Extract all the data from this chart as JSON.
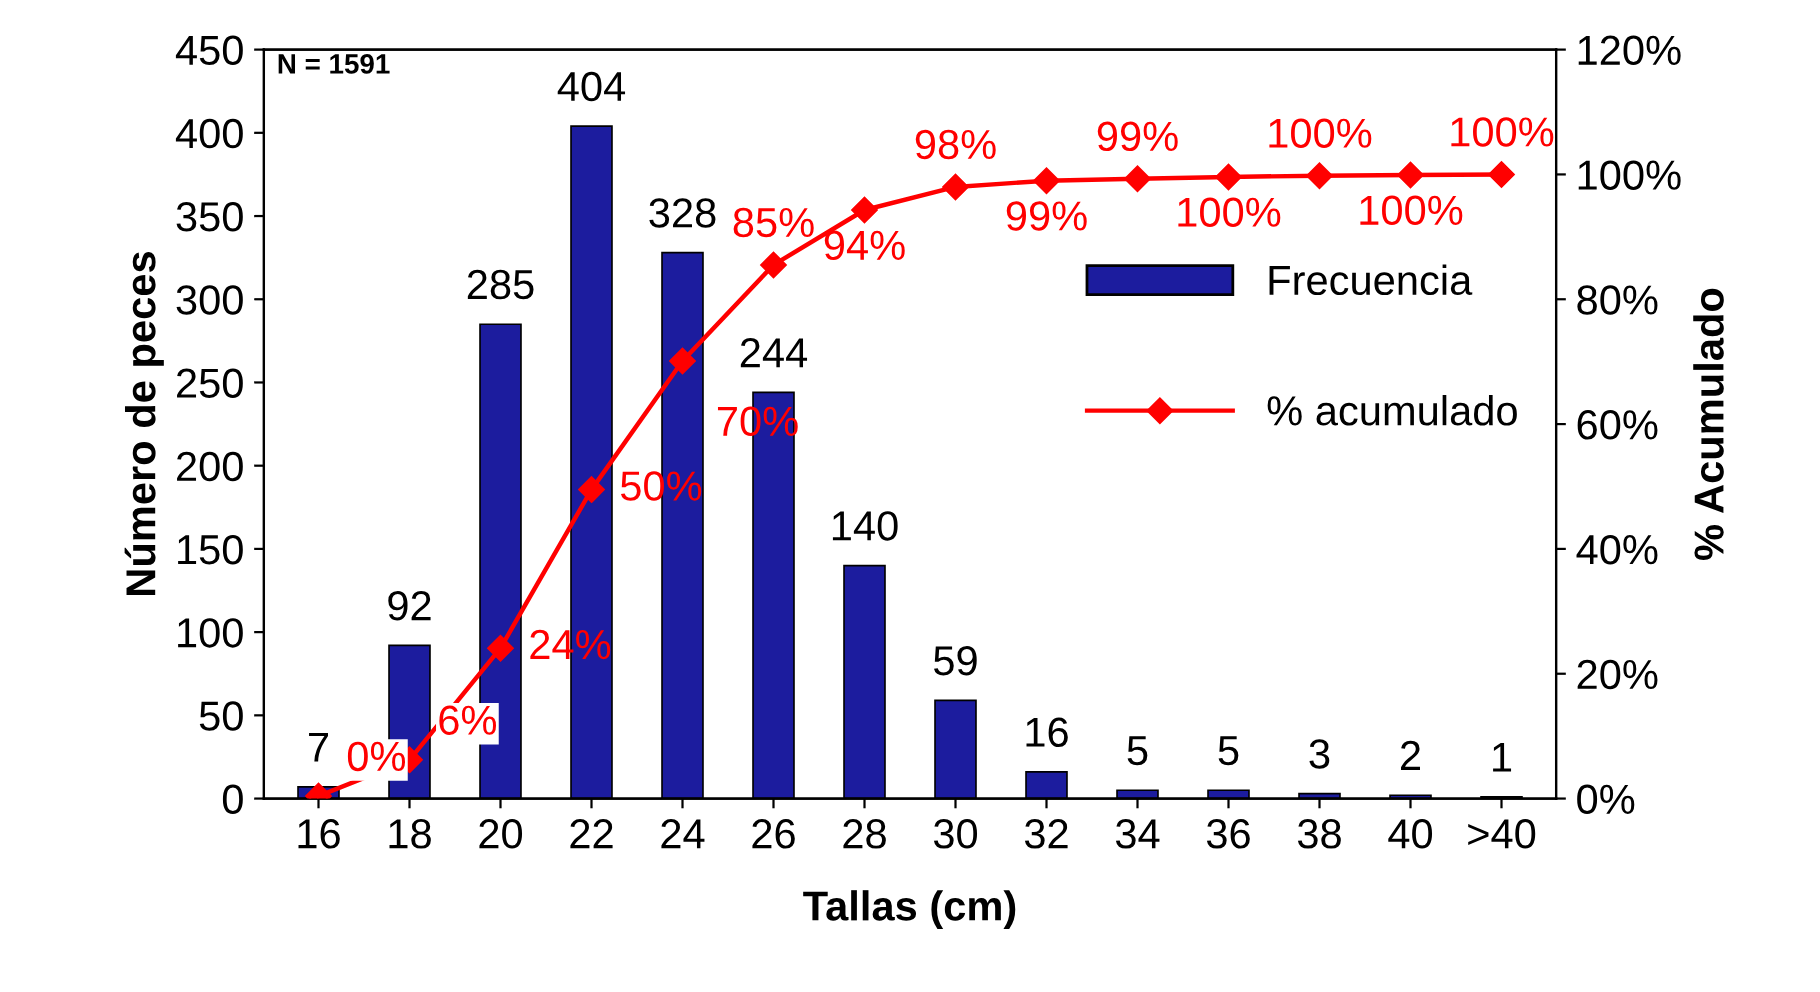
{
  "chart_data": {
    "type": "bar",
    "xlabel": "Tallas (cm)",
    "ylabel": "Número de peces",
    "y2label": "% Acumulado",
    "categories": [
      "16",
      "18",
      "20",
      "22",
      "24",
      "26",
      "28",
      "30",
      "32",
      "34",
      "36",
      "38",
      "40",
      ">40"
    ],
    "series": [
      {
        "name": "Frecuencia",
        "color": "#1c1c9e",
        "values": [
          7,
          92,
          285,
          404,
          328,
          244,
          140,
          59,
          16,
          5,
          5,
          3,
          2,
          1
        ],
        "data_labels": true
      },
      {
        "name": "% acumulado",
        "type": "line",
        "axis": "y2",
        "color": "#ff0000",
        "marker": "diamond",
        "values": [
          0.4,
          6.2,
          24.1,
          49.5,
          70.1,
          85.5,
          94.3,
          98.0,
          99.0,
          99.3,
          99.6,
          99.8,
          99.9,
          100
        ],
        "value_labels": [
          "0%",
          "6%",
          "24%",
          "50%",
          "70%",
          "85%",
          "94%",
          "98%",
          "99%",
          "99%",
          "100%",
          "100%",
          "100%",
          "100%"
        ]
      }
    ],
    "ylim": [
      0,
      450
    ],
    "yticks": [
      0,
      50,
      100,
      150,
      200,
      250,
      300,
      350,
      400,
      450
    ],
    "y2lim": [
      0,
      120
    ],
    "y2ticks": [
      {
        "value": 0,
        "label": "0%"
      },
      {
        "value": 20,
        "label": "20%"
      },
      {
        "value": 40,
        "label": "40%"
      },
      {
        "value": 60,
        "label": "60%"
      },
      {
        "value": 80,
        "label": "80%"
      },
      {
        "value": 100,
        "label": "100%"
      },
      {
        "value": 120,
        "label": "120%"
      }
    ],
    "annotations": [
      "N = 1591"
    ],
    "legend": "right",
    "grid": false
  }
}
